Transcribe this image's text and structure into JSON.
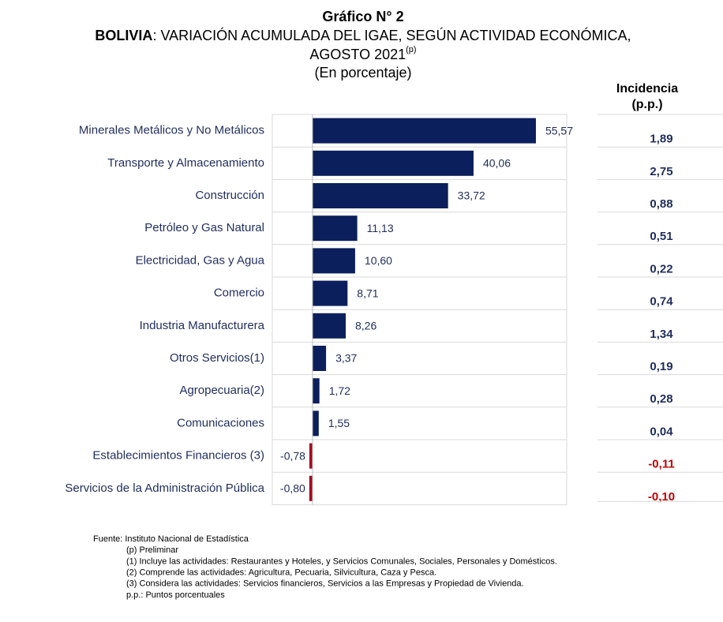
{
  "chart_data": {
    "type": "bar",
    "orientation": "horizontal",
    "title": "Gráfico N° 2",
    "subtitle_bold": "BOLIVIA",
    "subtitle": ": VARIACIÓN ACUMULADA DEL IGAE, SEGÚN ACTIVIDAD ECONÓMICA,",
    "subtitle_line2": "AGOSTO 2021",
    "subtitle_sup": "(p)",
    "units": "(En porcentaje)",
    "categories": [
      "Minerales Metálicos y No Metálicos",
      "Transporte y Almacenamiento",
      "Construcción",
      "Petróleo y Gas Natural",
      "Electricidad, Gas y Agua",
      "Comercio",
      "Industria Manufacturera",
      "Otros Servicios(1)",
      "Agropecuaria(2)",
      "Comunicaciones",
      "Establecimientos Financieros (3)",
      "Servicios de la Administración Pública"
    ],
    "values": [
      55.57,
      40.06,
      33.72,
      11.13,
      10.6,
      8.71,
      8.26,
      3.37,
      1.72,
      1.55,
      -0.78,
      -0.8
    ],
    "value_labels": [
      "55,57",
      "40,06",
      "33,72",
      "11,13",
      "10,60",
      "8,71",
      "8,26",
      "3,37",
      "1,72",
      "1,55",
      "-0,78",
      "-0,80"
    ],
    "color": "#0b1f5c",
    "negative_color": "#a50021",
    "xlim": [
      -10,
      65
    ],
    "incidence": {
      "title_lines": [
        "Incidencia",
        "(p.p.)"
      ],
      "values": [
        1.89,
        2.75,
        0.88,
        0.51,
        0.22,
        0.74,
        1.34,
        0.19,
        0.28,
        0.04,
        -0.11,
        -0.1
      ],
      "value_labels": [
        "1,89",
        "2,75",
        "0,88",
        "0,51",
        "0,22",
        "0,74",
        "1,34",
        "0,19",
        "0,28",
        "0,04",
        "-0,11",
        "-0,10"
      ],
      "color": "#1f2d5c",
      "negative_color": "#c00000"
    },
    "footnotes": [
      "Fuente: Instituto Nacional de Estadística",
      "(p) Preliminar",
      "(1) Incluye las actividades: Restaurantes y Hoteles, y Servicios Comunales, Sociales, Personales y Domésticos.",
      "(2) Comprende las actividades: Agricultura, Pecuaria, Silvicultura, Caza y Pesca.",
      "(3) Considera las actividades: Servicios financieros, Servicios a las Empresas y Propiedad de Vivienda.",
      "p.p.: Puntos porcentuales"
    ]
  }
}
